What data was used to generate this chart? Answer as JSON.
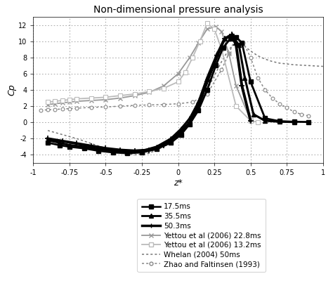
{
  "title": "Non-dimensional pressure analysis",
  "xlabel": "z*",
  "ylabel": "Cp",
  "xlim": [
    -1,
    1
  ],
  "ylim": [
    -5,
    13
  ],
  "yticks": [
    -4,
    -2,
    0,
    2,
    4,
    6,
    8,
    10,
    12
  ],
  "xticks": [
    -1,
    -0.75,
    -0.5,
    -0.25,
    0,
    0.25,
    0.5,
    0.75,
    1
  ],
  "xtick_labels": [
    "-1",
    "-0.75",
    "-0.5",
    "-0.25",
    "0",
    "0.25",
    "0.5",
    "0.75",
    "1"
  ],
  "series_17_5": {
    "label": "17.5ms",
    "color": "#000000",
    "linewidth": 2.0,
    "x": [
      -0.9,
      -0.82,
      -0.75,
      -0.65,
      -0.55,
      -0.45,
      -0.35,
      -0.25,
      -0.15,
      -0.05,
      0.02,
      0.08,
      0.14,
      0.2,
      0.26,
      0.31,
      0.36,
      0.4,
      0.44,
      0.5,
      0.6,
      0.7,
      0.8,
      0.9
    ],
    "y": [
      -2.5,
      -2.8,
      -3.0,
      -3.2,
      -3.5,
      -3.7,
      -3.8,
      -3.7,
      -3.3,
      -2.5,
      -1.5,
      -0.2,
      1.5,
      4.0,
      7.0,
      9.2,
      10.3,
      10.5,
      9.8,
      5.0,
      0.5,
      0.15,
      0.08,
      0.05
    ]
  },
  "series_35_5": {
    "label": "35.5ms",
    "color": "#000000",
    "linewidth": 2.2,
    "x": [
      -0.9,
      -0.82,
      -0.75,
      -0.65,
      -0.55,
      -0.45,
      -0.35,
      -0.25,
      -0.15,
      -0.05,
      0.02,
      0.08,
      0.14,
      0.2,
      0.27,
      0.32,
      0.37,
      0.42,
      0.46,
      0.52,
      0.6,
      0.7,
      0.8
    ],
    "y": [
      -2.2,
      -2.5,
      -2.8,
      -3.0,
      -3.3,
      -3.5,
      -3.6,
      -3.5,
      -3.0,
      -2.0,
      -0.8,
      0.5,
      2.5,
      5.5,
      8.5,
      10.3,
      10.8,
      9.5,
      5.5,
      1.0,
      0.2,
      0.08,
      0.05
    ]
  },
  "series_50_3": {
    "label": "50.3ms",
    "color": "#000000",
    "linewidth": 2.8,
    "x": [
      -0.9,
      -0.8,
      -0.7,
      -0.6,
      -0.5,
      -0.4,
      -0.3,
      -0.2,
      -0.1,
      0.0,
      0.08,
      0.14,
      0.2,
      0.27,
      0.32,
      0.37,
      0.4,
      0.44,
      0.5
    ],
    "y": [
      -2.0,
      -2.3,
      -2.6,
      -2.9,
      -3.2,
      -3.4,
      -3.5,
      -3.4,
      -2.8,
      -1.5,
      0.0,
      2.0,
      5.0,
      8.2,
      10.3,
      10.8,
      9.5,
      4.5,
      0.2
    ]
  },
  "series_yettou_22_8": {
    "label": "Yettou et al (2006) 22.8ms",
    "color": "#999999",
    "linewidth": 1.3,
    "x": [
      -0.9,
      -0.85,
      -0.8,
      -0.75,
      -0.7,
      -0.6,
      -0.5,
      -0.4,
      -0.3,
      -0.2,
      -0.1,
      0.0,
      0.08,
      0.14,
      0.2,
      0.26,
      0.3,
      0.35,
      0.4,
      0.5
    ],
    "y": [
      2.2,
      2.3,
      2.4,
      2.5,
      2.6,
      2.7,
      2.8,
      3.0,
      3.3,
      3.7,
      4.5,
      6.0,
      8.0,
      9.8,
      11.5,
      11.8,
      11.2,
      8.5,
      4.5,
      0.3
    ]
  },
  "series_yettou_13_2": {
    "label": "Yettou et al (2006) 13.2ms",
    "color": "#bbbbbb",
    "linewidth": 1.3,
    "x": [
      -0.9,
      -0.85,
      -0.8,
      -0.75,
      -0.7,
      -0.6,
      -0.5,
      -0.4,
      -0.3,
      -0.2,
      -0.1,
      0.0,
      0.05,
      0.1,
      0.15,
      0.2,
      0.25,
      0.3,
      0.4,
      0.5,
      0.55
    ],
    "y": [
      2.5,
      2.6,
      2.7,
      2.8,
      2.9,
      3.0,
      3.1,
      3.3,
      3.5,
      3.8,
      4.2,
      5.0,
      6.2,
      8.0,
      10.0,
      12.2,
      11.5,
      9.0,
      2.0,
      0.2,
      0.05
    ]
  },
  "series_whelan": {
    "label": "Whelan (2004) 50ms",
    "color": "#777777",
    "linewidth": 1.1,
    "x": [
      -0.9,
      -0.8,
      -0.7,
      -0.6,
      -0.5,
      -0.4,
      -0.3,
      -0.2,
      -0.1,
      0.0,
      0.1,
      0.2,
      0.3,
      0.35,
      0.4,
      0.45,
      0.5,
      0.55,
      0.6,
      0.65,
      0.7,
      0.75,
      0.8,
      0.85,
      0.9,
      0.95,
      1.0
    ],
    "y": [
      -1.0,
      -1.5,
      -2.0,
      -2.6,
      -3.2,
      -3.7,
      -4.0,
      -3.8,
      -3.0,
      -1.5,
      1.0,
      4.0,
      7.5,
      9.0,
      9.8,
      9.5,
      8.8,
      8.2,
      7.8,
      7.5,
      7.3,
      7.2,
      7.1,
      7.05,
      7.0,
      6.95,
      6.9
    ]
  },
  "series_zhao": {
    "label": "Zhao and Faltinsen (1993)",
    "color": "#888888",
    "linewidth": 1.1,
    "x": [
      -0.95,
      -0.9,
      -0.85,
      -0.8,
      -0.75,
      -0.7,
      -0.6,
      -0.5,
      -0.4,
      -0.3,
      -0.2,
      -0.1,
      0.0,
      0.1,
      0.2,
      0.3,
      0.35,
      0.4,
      0.45,
      0.5,
      0.55,
      0.6,
      0.65,
      0.7,
      0.75,
      0.8,
      0.85,
      0.9
    ],
    "y": [
      1.5,
      1.55,
      1.6,
      1.65,
      1.7,
      1.75,
      1.85,
      1.9,
      2.0,
      2.1,
      2.15,
      2.2,
      2.3,
      2.5,
      3.5,
      6.5,
      8.5,
      10.5,
      9.8,
      8.0,
      5.5,
      4.0,
      3.0,
      2.3,
      1.8,
      1.3,
      1.0,
      0.8
    ]
  }
}
